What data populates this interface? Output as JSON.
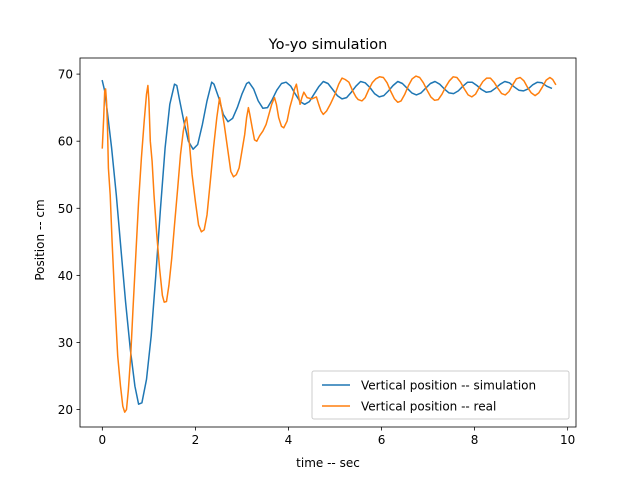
{
  "chart_data": {
    "type": "line",
    "title": "Yo-yo simulation",
    "xlabel": "time -- sec",
    "ylabel": "Position -- cm",
    "xlim": [
      -0.48,
      10.18
    ],
    "ylim": [
      17.4,
      72.4
    ],
    "xticks": [
      0,
      2,
      4,
      6,
      8,
      10
    ],
    "yticks": [
      20,
      30,
      40,
      50,
      60,
      70
    ],
    "grid": false,
    "legend_position": "lower right",
    "series": [
      {
        "name": "Vertical position -- simulation",
        "color": "#1f77b4",
        "points": [
          [
            0.0,
            69.0
          ],
          [
            0.05,
            67.5
          ],
          [
            0.1,
            64.8
          ],
          [
            0.2,
            59.0
          ],
          [
            0.3,
            52.0
          ],
          [
            0.4,
            44.0
          ],
          [
            0.5,
            36.0
          ],
          [
            0.6,
            29.0
          ],
          [
            0.7,
            23.5
          ],
          [
            0.78,
            20.8
          ],
          [
            0.85,
            21.0
          ],
          [
            0.95,
            24.5
          ],
          [
            1.05,
            31.0
          ],
          [
            1.15,
            40.0
          ],
          [
            1.25,
            50.0
          ],
          [
            1.35,
            59.0
          ],
          [
            1.45,
            65.5
          ],
          [
            1.55,
            68.5
          ],
          [
            1.6,
            68.3
          ],
          [
            1.65,
            66.5
          ],
          [
            1.75,
            63.0
          ],
          [
            1.85,
            60.0
          ],
          [
            1.95,
            58.8
          ],
          [
            2.05,
            59.5
          ],
          [
            2.15,
            62.5
          ],
          [
            2.25,
            66.0
          ],
          [
            2.35,
            68.8
          ],
          [
            2.4,
            68.5
          ],
          [
            2.5,
            66.5
          ],
          [
            2.6,
            64.0
          ],
          [
            2.7,
            62.9
          ],
          [
            2.8,
            63.4
          ],
          [
            2.9,
            65.0
          ],
          [
            3.0,
            67.0
          ],
          [
            3.1,
            68.6
          ],
          [
            3.15,
            68.8
          ],
          [
            3.25,
            67.8
          ],
          [
            3.35,
            66.0
          ],
          [
            3.45,
            64.9
          ],
          [
            3.55,
            65.0
          ],
          [
            3.65,
            66.2
          ],
          [
            3.75,
            67.6
          ],
          [
            3.85,
            68.6
          ],
          [
            3.95,
            68.8
          ],
          [
            4.05,
            68.2
          ],
          [
            4.15,
            67.0
          ],
          [
            4.25,
            65.9
          ],
          [
            4.35,
            65.5
          ],
          [
            4.45,
            65.9
          ],
          [
            4.55,
            67.0
          ],
          [
            4.65,
            68.1
          ],
          [
            4.75,
            68.9
          ],
          [
            4.85,
            68.6
          ],
          [
            4.95,
            67.7
          ],
          [
            5.05,
            66.8
          ],
          [
            5.15,
            66.3
          ],
          [
            5.25,
            66.5
          ],
          [
            5.35,
            67.3
          ],
          [
            5.45,
            68.2
          ],
          [
            5.55,
            68.9
          ],
          [
            5.65,
            68.7
          ],
          [
            5.75,
            68.0
          ],
          [
            5.85,
            67.1
          ],
          [
            5.95,
            66.6
          ],
          [
            6.05,
            66.8
          ],
          [
            6.15,
            67.5
          ],
          [
            6.25,
            68.3
          ],
          [
            6.35,
            68.9
          ],
          [
            6.45,
            68.6
          ],
          [
            6.55,
            67.9
          ],
          [
            6.65,
            67.2
          ],
          [
            6.75,
            66.9
          ],
          [
            6.85,
            67.2
          ],
          [
            6.95,
            67.9
          ],
          [
            7.05,
            68.6
          ],
          [
            7.15,
            68.9
          ],
          [
            7.25,
            68.5
          ],
          [
            7.35,
            67.8
          ],
          [
            7.45,
            67.2
          ],
          [
            7.55,
            67.1
          ],
          [
            7.65,
            67.5
          ],
          [
            7.75,
            68.2
          ],
          [
            7.85,
            68.8
          ],
          [
            7.95,
            68.8
          ],
          [
            8.05,
            68.3
          ],
          [
            8.15,
            67.7
          ],
          [
            8.25,
            67.3
          ],
          [
            8.35,
            67.4
          ],
          [
            8.45,
            67.9
          ],
          [
            8.55,
            68.5
          ],
          [
            8.65,
            68.9
          ],
          [
            8.75,
            68.7
          ],
          [
            8.85,
            68.1
          ],
          [
            8.95,
            67.6
          ],
          [
            9.05,
            67.5
          ],
          [
            9.15,
            67.8
          ],
          [
            9.25,
            68.4
          ],
          [
            9.35,
            68.8
          ],
          [
            9.45,
            68.7
          ],
          [
            9.55,
            68.2
          ],
          [
            9.65,
            67.9
          ]
        ]
      },
      {
        "name": "Vertical position -- real",
        "color": "#ff7f0e",
        "points": [
          [
            0.0,
            59.0
          ],
          [
            0.03,
            63.5
          ],
          [
            0.05,
            67.5
          ],
          [
            0.07,
            67.8
          ],
          [
            0.09,
            66.0
          ],
          [
            0.11,
            62.0
          ],
          [
            0.13,
            56.0
          ],
          [
            0.17,
            52.0
          ],
          [
            0.21,
            45.0
          ],
          [
            0.27,
            36.0
          ],
          [
            0.33,
            28.0
          ],
          [
            0.39,
            23.5
          ],
          [
            0.44,
            20.5
          ],
          [
            0.48,
            19.6
          ],
          [
            0.52,
            20.0
          ],
          [
            0.56,
            23.0
          ],
          [
            0.61,
            28.0
          ],
          [
            0.66,
            35.0
          ],
          [
            0.72,
            43.0
          ],
          [
            0.78,
            51.0
          ],
          [
            0.84,
            57.5
          ],
          [
            0.9,
            63.0
          ],
          [
            0.95,
            67.0
          ],
          [
            0.98,
            68.3
          ],
          [
            1.0,
            66.0
          ],
          [
            1.03,
            60.0
          ],
          [
            1.07,
            57.0
          ],
          [
            1.11,
            52.0
          ],
          [
            1.17,
            46.0
          ],
          [
            1.23,
            41.0
          ],
          [
            1.29,
            37.0
          ],
          [
            1.33,
            36.0
          ],
          [
            1.38,
            36.1
          ],
          [
            1.43,
            38.5
          ],
          [
            1.49,
            42.5
          ],
          [
            1.55,
            47.5
          ],
          [
            1.62,
            53.0
          ],
          [
            1.68,
            58.0
          ],
          [
            1.74,
            61.5
          ],
          [
            1.78,
            63.0
          ],
          [
            1.81,
            63.6
          ],
          [
            1.84,
            62.0
          ],
          [
            1.88,
            59.0
          ],
          [
            1.93,
            55.0
          ],
          [
            2.0,
            51.0
          ],
          [
            2.07,
            47.5
          ],
          [
            2.13,
            46.5
          ],
          [
            2.19,
            46.8
          ],
          [
            2.25,
            49.0
          ],
          [
            2.32,
            54.0
          ],
          [
            2.39,
            59.0
          ],
          [
            2.46,
            63.5
          ],
          [
            2.52,
            66.5
          ],
          [
            2.56,
            65.0
          ],
          [
            2.62,
            62.5
          ],
          [
            2.69,
            59.0
          ],
          [
            2.76,
            55.5
          ],
          [
            2.82,
            54.7
          ],
          [
            2.88,
            55.0
          ],
          [
            2.94,
            56.0
          ],
          [
            3.0,
            58.5
          ],
          [
            3.06,
            61.0
          ],
          [
            3.1,
            63.5
          ],
          [
            3.14,
            65.0
          ],
          [
            3.17,
            64.0
          ],
          [
            3.22,
            62.0
          ],
          [
            3.27,
            60.2
          ],
          [
            3.32,
            60.0
          ],
          [
            3.38,
            60.8
          ],
          [
            3.45,
            61.5
          ],
          [
            3.52,
            62.5
          ],
          [
            3.58,
            64.0
          ],
          [
            3.64,
            65.5
          ],
          [
            3.7,
            66.5
          ],
          [
            3.74,
            65.5
          ],
          [
            3.79,
            63.5
          ],
          [
            3.85,
            62.2
          ],
          [
            3.9,
            62.0
          ],
          [
            3.97,
            63.0
          ],
          [
            4.03,
            65.0
          ],
          [
            4.09,
            66.5
          ],
          [
            4.13,
            67.8
          ],
          [
            4.17,
            68.5
          ],
          [
            4.21,
            67.0
          ],
          [
            4.25,
            65.5
          ],
          [
            4.29,
            66.5
          ],
          [
            4.33,
            67.3
          ],
          [
            4.4,
            66.5
          ],
          [
            4.5,
            66.3
          ],
          [
            4.6,
            66.6
          ],
          [
            4.65,
            65.5
          ],
          [
            4.7,
            64.5
          ],
          [
            4.75,
            64.0
          ],
          [
            4.82,
            64.5
          ],
          [
            4.9,
            65.5
          ],
          [
            5.0,
            67.0
          ],
          [
            5.08,
            68.5
          ],
          [
            5.15,
            69.4
          ],
          [
            5.22,
            69.2
          ],
          [
            5.3,
            68.8
          ],
          [
            5.38,
            67.5
          ],
          [
            5.45,
            66.6
          ],
          [
            5.5,
            66.2
          ],
          [
            5.58,
            66.0
          ],
          [
            5.65,
            66.5
          ],
          [
            5.72,
            67.6
          ],
          [
            5.8,
            68.7
          ],
          [
            5.88,
            69.3
          ],
          [
            5.96,
            69.6
          ],
          [
            6.04,
            69.5
          ],
          [
            6.12,
            68.7
          ],
          [
            6.2,
            67.4
          ],
          [
            6.28,
            66.3
          ],
          [
            6.35,
            65.8
          ],
          [
            6.42,
            66.0
          ],
          [
            6.5,
            67.0
          ],
          [
            6.58,
            68.3
          ],
          [
            6.66,
            69.3
          ],
          [
            6.74,
            69.7
          ],
          [
            6.82,
            69.5
          ],
          [
            6.9,
            68.7
          ],
          [
            6.98,
            67.6
          ],
          [
            7.06,
            66.6
          ],
          [
            7.14,
            66.1
          ],
          [
            7.22,
            66.2
          ],
          [
            7.3,
            67.0
          ],
          [
            7.38,
            68.1
          ],
          [
            7.46,
            69.0
          ],
          [
            7.54,
            69.6
          ],
          [
            7.62,
            69.5
          ],
          [
            7.7,
            68.8
          ],
          [
            7.78,
            67.8
          ],
          [
            7.86,
            66.9
          ],
          [
            7.94,
            66.6
          ],
          [
            8.02,
            67.0
          ],
          [
            8.1,
            68.0
          ],
          [
            8.18,
            68.9
          ],
          [
            8.26,
            69.4
          ],
          [
            8.34,
            69.4
          ],
          [
            8.42,
            68.8
          ],
          [
            8.5,
            67.9
          ],
          [
            8.58,
            67.1
          ],
          [
            8.66,
            66.9
          ],
          [
            8.74,
            67.4
          ],
          [
            8.82,
            68.4
          ],
          [
            8.9,
            69.3
          ],
          [
            8.98,
            69.5
          ],
          [
            9.06,
            69.0
          ],
          [
            9.14,
            68.0
          ],
          [
            9.22,
            67.2
          ],
          [
            9.3,
            66.8
          ],
          [
            9.38,
            67.2
          ],
          [
            9.46,
            68.1
          ],
          [
            9.54,
            69.1
          ],
          [
            9.62,
            69.5
          ],
          [
            9.68,
            69.2
          ],
          [
            9.74,
            68.5
          ]
        ]
      }
    ]
  }
}
